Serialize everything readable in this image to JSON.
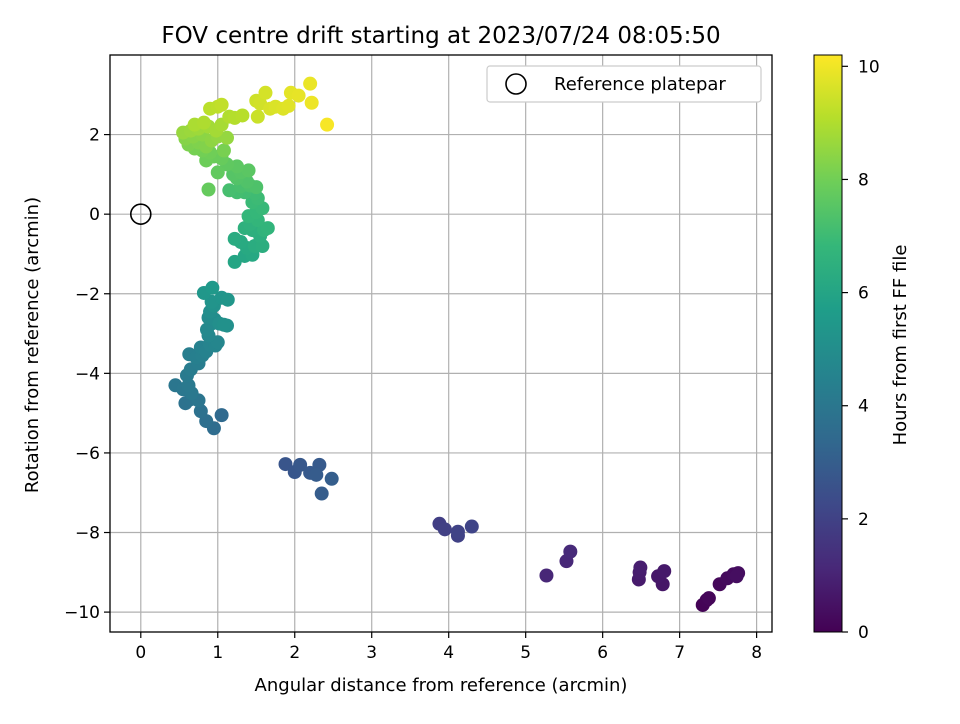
{
  "chart_data": {
    "type": "scatter",
    "title": "FOV centre drift starting at 2023/07/24 08:05:50",
    "xlabel": "Angular distance from reference (arcmin)",
    "ylabel": "Rotation from reference (arcmin)",
    "xlim": [
      -0.4,
      8.2
    ],
    "ylim": [
      -10.5,
      4.0
    ],
    "xticks": [
      0,
      1,
      2,
      3,
      4,
      5,
      6,
      7,
      8
    ],
    "yticks": [
      -10,
      -8,
      -6,
      -4,
      -2,
      0,
      2
    ],
    "grid": true,
    "legend": {
      "location": "top-right",
      "entries": [
        "Reference platepar"
      ]
    },
    "reference_point": {
      "x": 0,
      "y": 0,
      "label": "Reference platepar"
    },
    "colorbar": {
      "label": "Hours from first FF file",
      "min": 0,
      "max": 10.2,
      "ticks": [
        0,
        2,
        4,
        6,
        8,
        10
      ],
      "colormap": [
        "#440154",
        "#482878",
        "#3e4989",
        "#31688e",
        "#26828e",
        "#1f9e89",
        "#35b779",
        "#6ece58",
        "#b5de2b",
        "#fde725"
      ]
    },
    "points": [
      {
        "x": 7.3,
        "y": -9.82,
        "h": 0.05
      },
      {
        "x": 7.35,
        "y": -9.7,
        "h": 0.1
      },
      {
        "x": 7.38,
        "y": -9.65,
        "h": 0.15
      },
      {
        "x": 7.52,
        "y": -9.3,
        "h": 0.2
      },
      {
        "x": 7.62,
        "y": -9.15,
        "h": 0.25
      },
      {
        "x": 7.7,
        "y": -9.05,
        "h": 0.3
      },
      {
        "x": 7.76,
        "y": -9.02,
        "h": 0.35
      },
      {
        "x": 7.74,
        "y": -9.1,
        "h": 0.38
      },
      {
        "x": 6.78,
        "y": -9.3,
        "h": 0.6
      },
      {
        "x": 6.72,
        "y": -9.1,
        "h": 0.65
      },
      {
        "x": 6.8,
        "y": -8.97,
        "h": 0.7
      },
      {
        "x": 6.47,
        "y": -9.18,
        "h": 0.75
      },
      {
        "x": 6.48,
        "y": -9.0,
        "h": 0.8
      },
      {
        "x": 6.49,
        "y": -8.88,
        "h": 0.85
      },
      {
        "x": 5.27,
        "y": -9.08,
        "h": 1.1
      },
      {
        "x": 5.53,
        "y": -8.72,
        "h": 1.15
      },
      {
        "x": 5.58,
        "y": -8.48,
        "h": 1.2
      },
      {
        "x": 3.88,
        "y": -7.78,
        "h": 1.9
      },
      {
        "x": 3.95,
        "y": -7.92,
        "h": 1.95
      },
      {
        "x": 4.12,
        "y": -8.08,
        "h": 2.0
      },
      {
        "x": 4.12,
        "y": -7.98,
        "h": 2.05
      },
      {
        "x": 4.3,
        "y": -7.85,
        "h": 2.1
      },
      {
        "x": 1.88,
        "y": -6.28,
        "h": 2.7
      },
      {
        "x": 2.0,
        "y": -6.48,
        "h": 2.75
      },
      {
        "x": 2.07,
        "y": -6.3,
        "h": 2.8
      },
      {
        "x": 2.2,
        "y": -6.5,
        "h": 2.85
      },
      {
        "x": 2.32,
        "y": -6.3,
        "h": 2.9
      },
      {
        "x": 2.28,
        "y": -6.55,
        "h": 2.95
      },
      {
        "x": 2.35,
        "y": -7.02,
        "h": 3.0
      },
      {
        "x": 2.48,
        "y": -6.65,
        "h": 3.05
      },
      {
        "x": 1.05,
        "y": -5.05,
        "h": 3.5
      },
      {
        "x": 0.95,
        "y": -5.38,
        "h": 3.6
      },
      {
        "x": 0.85,
        "y": -5.2,
        "h": 3.7
      },
      {
        "x": 0.78,
        "y": -4.95,
        "h": 3.8
      },
      {
        "x": 0.58,
        "y": -4.75,
        "h": 3.85
      },
      {
        "x": 0.65,
        "y": -4.65,
        "h": 3.9
      },
      {
        "x": 0.75,
        "y": -4.68,
        "h": 3.95
      },
      {
        "x": 0.45,
        "y": -4.3,
        "h": 4.0
      },
      {
        "x": 0.55,
        "y": -4.4,
        "h": 4.05
      },
      {
        "x": 0.66,
        "y": -4.5,
        "h": 4.1
      },
      {
        "x": 0.62,
        "y": -4.3,
        "h": 4.15
      },
      {
        "x": 0.6,
        "y": -4.05,
        "h": 4.2
      },
      {
        "x": 0.65,
        "y": -3.9,
        "h": 4.25
      },
      {
        "x": 0.75,
        "y": -3.75,
        "h": 4.3
      },
      {
        "x": 0.63,
        "y": -3.52,
        "h": 4.35
      },
      {
        "x": 0.72,
        "y": -3.6,
        "h": 4.4
      },
      {
        "x": 0.8,
        "y": -3.55,
        "h": 4.45
      },
      {
        "x": 0.78,
        "y": -3.35,
        "h": 4.5
      },
      {
        "x": 0.85,
        "y": -3.45,
        "h": 4.55
      },
      {
        "x": 0.9,
        "y": -3.28,
        "h": 4.6
      },
      {
        "x": 0.97,
        "y": -3.3,
        "h": 4.65
      },
      {
        "x": 1.0,
        "y": -3.22,
        "h": 4.7
      },
      {
        "x": 0.88,
        "y": -3.05,
        "h": 4.75
      },
      {
        "x": 0.86,
        "y": -2.9,
        "h": 4.8
      },
      {
        "x": 0.92,
        "y": -2.75,
        "h": 4.85
      },
      {
        "x": 0.88,
        "y": -2.6,
        "h": 4.9
      },
      {
        "x": 0.96,
        "y": -2.65,
        "h": 4.95
      },
      {
        "x": 0.9,
        "y": -2.45,
        "h": 5.0
      },
      {
        "x": 1.02,
        "y": -2.75,
        "h": 5.05
      },
      {
        "x": 1.12,
        "y": -2.8,
        "h": 5.1
      },
      {
        "x": 1.08,
        "y": -2.78,
        "h": 5.15
      },
      {
        "x": 0.95,
        "y": -2.3,
        "h": 5.2
      },
      {
        "x": 0.92,
        "y": -2.2,
        "h": 5.25
      },
      {
        "x": 1.05,
        "y": -2.1,
        "h": 5.3
      },
      {
        "x": 1.13,
        "y": -2.15,
        "h": 5.35
      },
      {
        "x": 0.82,
        "y": -1.98,
        "h": 5.4
      },
      {
        "x": 0.93,
        "y": -1.85,
        "h": 5.45
      },
      {
        "x": 1.22,
        "y": -1.2,
        "h": 6.0
      },
      {
        "x": 1.35,
        "y": -1.05,
        "h": 6.05
      },
      {
        "x": 1.45,
        "y": -1.02,
        "h": 6.1
      },
      {
        "x": 1.38,
        "y": -0.85,
        "h": 6.15
      },
      {
        "x": 1.3,
        "y": -0.7,
        "h": 6.2
      },
      {
        "x": 1.22,
        "y": -0.62,
        "h": 6.25
      },
      {
        "x": 1.48,
        "y": -0.8,
        "h": 6.3
      },
      {
        "x": 1.58,
        "y": -0.8,
        "h": 6.35
      },
      {
        "x": 1.55,
        "y": -0.55,
        "h": 6.4
      },
      {
        "x": 1.45,
        "y": -0.4,
        "h": 6.45
      },
      {
        "x": 1.35,
        "y": -0.35,
        "h": 6.5
      },
      {
        "x": 1.42,
        "y": -0.25,
        "h": 6.55
      },
      {
        "x": 1.6,
        "y": -0.4,
        "h": 6.6
      },
      {
        "x": 1.65,
        "y": -0.35,
        "h": 6.65
      },
      {
        "x": 1.52,
        "y": -0.15,
        "h": 6.7
      },
      {
        "x": 1.4,
        "y": -0.05,
        "h": 6.75
      },
      {
        "x": 1.5,
        "y": 0.05,
        "h": 6.8
      },
      {
        "x": 1.58,
        "y": 0.15,
        "h": 6.85
      },
      {
        "x": 1.45,
        "y": 0.3,
        "h": 6.9
      },
      {
        "x": 1.52,
        "y": 0.4,
        "h": 6.95
      },
      {
        "x": 1.48,
        "y": 0.52,
        "h": 7.0
      },
      {
        "x": 1.35,
        "y": 0.55,
        "h": 7.05
      },
      {
        "x": 1.25,
        "y": 0.55,
        "h": 7.1
      },
      {
        "x": 1.15,
        "y": 0.6,
        "h": 7.15
      },
      {
        "x": 1.3,
        "y": 0.7,
        "h": 7.2
      },
      {
        "x": 1.42,
        "y": 0.72,
        "h": 7.25
      },
      {
        "x": 1.5,
        "y": 0.68,
        "h": 7.3
      },
      {
        "x": 1.38,
        "y": 0.82,
        "h": 7.35
      },
      {
        "x": 1.25,
        "y": 0.9,
        "h": 7.4
      },
      {
        "x": 1.2,
        "y": 1.0,
        "h": 7.45
      },
      {
        "x": 1.3,
        "y": 1.05,
        "h": 7.5
      },
      {
        "x": 1.4,
        "y": 1.1,
        "h": 7.55
      },
      {
        "x": 1.25,
        "y": 1.2,
        "h": 7.6
      },
      {
        "x": 1.12,
        "y": 1.25,
        "h": 7.65
      },
      {
        "x": 1.0,
        "y": 1.05,
        "h": 7.7
      },
      {
        "x": 0.88,
        "y": 0.62,
        "h": 7.75
      },
      {
        "x": 1.05,
        "y": 1.4,
        "h": 7.8
      },
      {
        "x": 0.95,
        "y": 1.45,
        "h": 7.85
      },
      {
        "x": 0.85,
        "y": 1.35,
        "h": 7.9
      },
      {
        "x": 0.9,
        "y": 1.55,
        "h": 7.95
      },
      {
        "x": 0.8,
        "y": 1.6,
        "h": 8.0
      },
      {
        "x": 0.7,
        "y": 1.65,
        "h": 8.05
      },
      {
        "x": 1.08,
        "y": 1.6,
        "h": 8.1
      },
      {
        "x": 0.62,
        "y": 1.75,
        "h": 8.15
      },
      {
        "x": 0.75,
        "y": 1.8,
        "h": 8.2
      },
      {
        "x": 0.85,
        "y": 1.7,
        "h": 8.25
      },
      {
        "x": 0.58,
        "y": 1.9,
        "h": 8.3
      },
      {
        "x": 0.68,
        "y": 1.95,
        "h": 8.35
      },
      {
        "x": 0.8,
        "y": 2.0,
        "h": 8.4
      },
      {
        "x": 0.92,
        "y": 1.85,
        "h": 8.45
      },
      {
        "x": 1.0,
        "y": 1.95,
        "h": 8.5
      },
      {
        "x": 1.12,
        "y": 1.92,
        "h": 8.55
      },
      {
        "x": 0.55,
        "y": 2.05,
        "h": 8.6
      },
      {
        "x": 0.65,
        "y": 2.1,
        "h": 8.65
      },
      {
        "x": 0.75,
        "y": 2.15,
        "h": 8.7
      },
      {
        "x": 0.88,
        "y": 2.2,
        "h": 8.75
      },
      {
        "x": 0.98,
        "y": 2.1,
        "h": 8.8
      },
      {
        "x": 1.05,
        "y": 2.25,
        "h": 8.85
      },
      {
        "x": 0.7,
        "y": 2.25,
        "h": 8.9
      },
      {
        "x": 0.82,
        "y": 2.3,
        "h": 8.95
      },
      {
        "x": 1.15,
        "y": 2.45,
        "h": 9.0
      },
      {
        "x": 1.22,
        "y": 2.42,
        "h": 9.05
      },
      {
        "x": 1.32,
        "y": 2.48,
        "h": 9.1
      },
      {
        "x": 0.9,
        "y": 2.65,
        "h": 9.15
      },
      {
        "x": 1.0,
        "y": 2.7,
        "h": 9.2
      },
      {
        "x": 1.05,
        "y": 2.75,
        "h": 9.25
      },
      {
        "x": 1.52,
        "y": 2.45,
        "h": 9.4
      },
      {
        "x": 1.5,
        "y": 2.85,
        "h": 9.45
      },
      {
        "x": 1.55,
        "y": 2.78,
        "h": 9.5
      },
      {
        "x": 1.62,
        "y": 3.05,
        "h": 9.55
      },
      {
        "x": 1.68,
        "y": 2.65,
        "h": 9.6
      },
      {
        "x": 1.75,
        "y": 2.7,
        "h": 9.65
      },
      {
        "x": 1.85,
        "y": 2.65,
        "h": 9.7
      },
      {
        "x": 1.92,
        "y": 2.72,
        "h": 9.75
      },
      {
        "x": 1.95,
        "y": 3.05,
        "h": 9.8
      },
      {
        "x": 2.05,
        "y": 2.98,
        "h": 9.85
      },
      {
        "x": 2.2,
        "y": 3.28,
        "h": 9.9
      },
      {
        "x": 2.22,
        "y": 2.8,
        "h": 9.95
      },
      {
        "x": 2.42,
        "y": 2.25,
        "h": 10.1
      }
    ]
  }
}
